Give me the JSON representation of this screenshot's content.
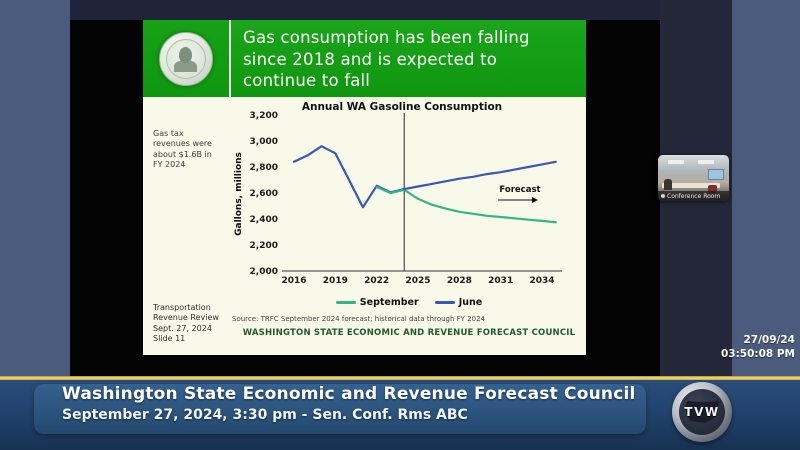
{
  "slide": {
    "title_lines": [
      "Gas consumption has been falling",
      "since 2018 and is expected to",
      "continue to fall"
    ],
    "side_note": "Gas tax revenues were about $1.6B in FY 2024",
    "bottom_note_lines": [
      "Transportation",
      "Revenue Review",
      "Sept. 27, 2024",
      "Slide 11"
    ],
    "source": "Source: TRFC September 2024 forecast; historical data through FY 2024",
    "org_footer": "WASHINGTON STATE ECONOMIC AND REVENUE FORECAST COUNCIL"
  },
  "chart_data": {
    "type": "line",
    "title": "Annual WA Gasoline Consumption",
    "ylabel": "Gallons, millions",
    "ylim": [
      2000,
      3200
    ],
    "xlim": [
      2015,
      2035.5
    ],
    "grid": false,
    "legend_position": "bottom",
    "x_ticks": [
      2016,
      2019,
      2022,
      2025,
      2028,
      2031,
      2034
    ],
    "y_ticks": [
      {
        "v": 2000,
        "label": "2,000"
      },
      {
        "v": 2200,
        "label": "2,200"
      },
      {
        "v": 2400,
        "label": "2,400"
      },
      {
        "v": 2600,
        "label": "2,600"
      },
      {
        "v": 2800,
        "label": "2,800"
      },
      {
        "v": 3000,
        "label": "3,000"
      },
      {
        "v": 3200,
        "label": "3,200"
      }
    ],
    "forecast_divider_x": 2024,
    "forecast_label": "Forecast",
    "legend": [
      {
        "name": "September",
        "color": "#35b586"
      },
      {
        "name": "June",
        "color": "#3a57b5"
      }
    ],
    "series": [
      {
        "name": "historical",
        "color": "#3a57b5",
        "x": [
          2016,
          2017,
          2018,
          2019,
          2020,
          2021,
          2022,
          2023,
          2024
        ],
        "y": [
          2840,
          2890,
          2960,
          2905,
          2700,
          2490,
          2655,
          2605,
          2630
        ]
      },
      {
        "name": "September",
        "color": "#35b586",
        "x": [
          2022,
          2023,
          2024,
          2025,
          2026,
          2027,
          2028,
          2029,
          2030,
          2031,
          2032,
          2033,
          2034,
          2035
        ],
        "y": [
          2645,
          2600,
          2625,
          2555,
          2510,
          2480,
          2455,
          2440,
          2425,
          2415,
          2405,
          2395,
          2385,
          2375
        ]
      },
      {
        "name": "June",
        "color": "#3a57b5",
        "x": [
          2024,
          2025,
          2026,
          2027,
          2028,
          2029,
          2030,
          2031,
          2032,
          2033,
          2034,
          2035
        ],
        "y": [
          2630,
          2650,
          2670,
          2690,
          2710,
          2725,
          2745,
          2760,
          2780,
          2800,
          2820,
          2840
        ]
      }
    ]
  },
  "thumbnail": {
    "label": "Conference Room"
  },
  "timestamp": {
    "date": "27/09/24",
    "time": "03:50:08 PM"
  },
  "banner": {
    "title": "Washington State Economic and Revenue Forecast Council",
    "subtitle": "September 27, 2024, 3:30 pm - Sen. Conf. Rms ABC",
    "logo_text": "TVW"
  },
  "colors": {
    "header_green": "#14a014",
    "slide_cream": "#f9f9e9",
    "june_blue": "#3a57b5",
    "september_green": "#35b586",
    "banner_navy": "#234571",
    "gold_line": "#e8d45e",
    "chrome_blue_gray": "#4b5b7e",
    "org_footer_green": "#1e5c2c"
  }
}
